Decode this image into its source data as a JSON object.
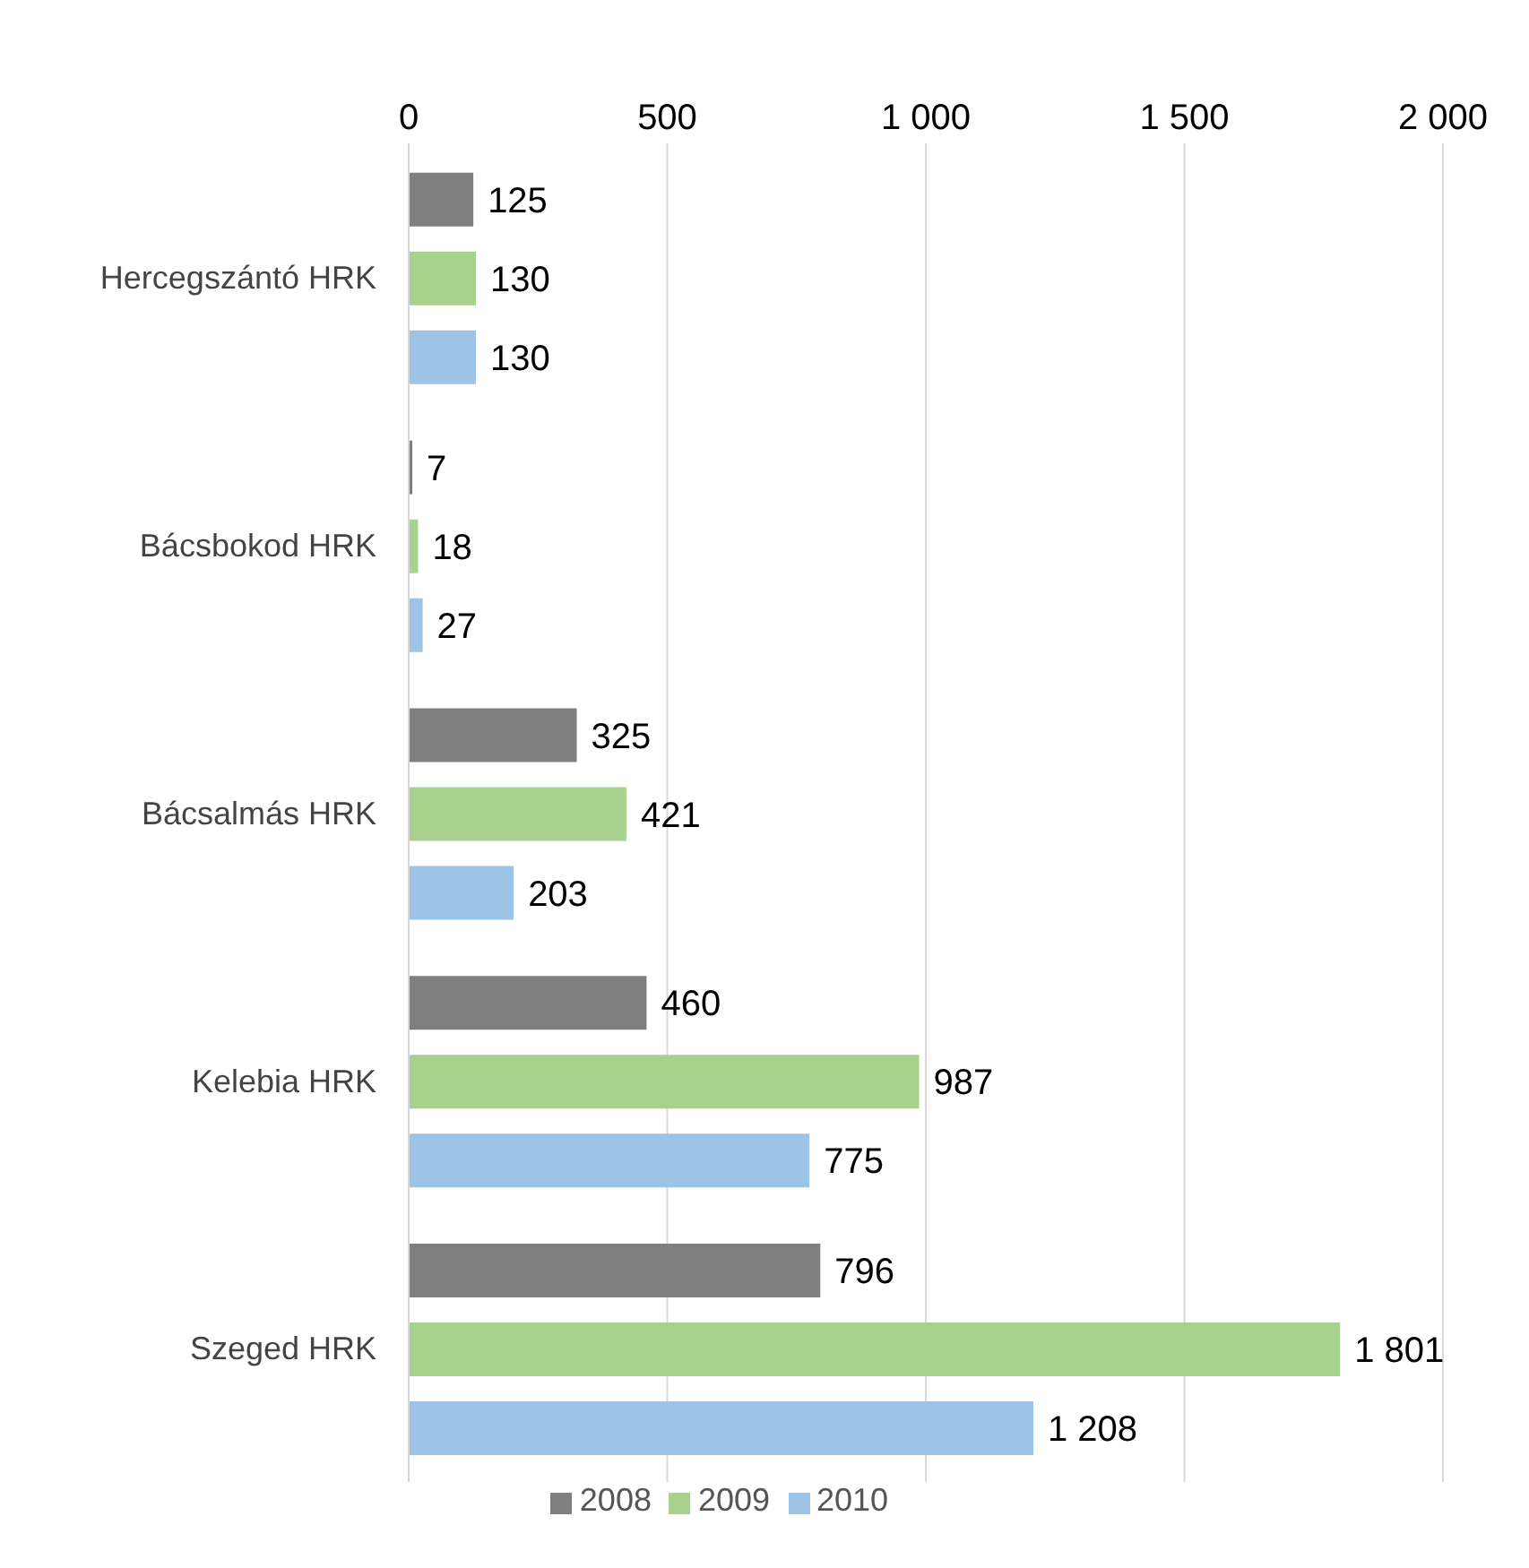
{
  "chart_data": {
    "type": "bar",
    "orientation": "horizontal",
    "categories": [
      "Hercegszántó HRK",
      "Bácsbokod HRK",
      "Bácsalmás HRK",
      "Kelebia HRK",
      "Szeged HRK"
    ],
    "series": [
      {
        "name": "2008",
        "color": "#7f7f7f",
        "values": [
          125,
          7,
          325,
          460,
          796
        ],
        "value_labels": [
          "125",
          "7",
          "325",
          "460",
          "796"
        ]
      },
      {
        "name": "2009",
        "color": "#a9d18e",
        "values": [
          130,
          18,
          421,
          987,
          1801
        ],
        "value_labels": [
          "130",
          "18",
          "421",
          "987",
          "1 801"
        ]
      },
      {
        "name": "2010",
        "color": "#9dc3e6",
        "values": [
          130,
          27,
          203,
          775,
          1208
        ],
        "value_labels": [
          "130",
          "27",
          "203",
          "775",
          "1 208"
        ]
      }
    ],
    "xlim": [
      0,
      2000
    ],
    "xticks": [
      0,
      500,
      {
        "value": 1000,
        "label": "1 000"
      },
      {
        "value": 1500,
        "label": "1 500"
      },
      {
        "value": 2000,
        "label": "2 000"
      }
    ],
    "grid": "x",
    "legend": "bottom"
  }
}
